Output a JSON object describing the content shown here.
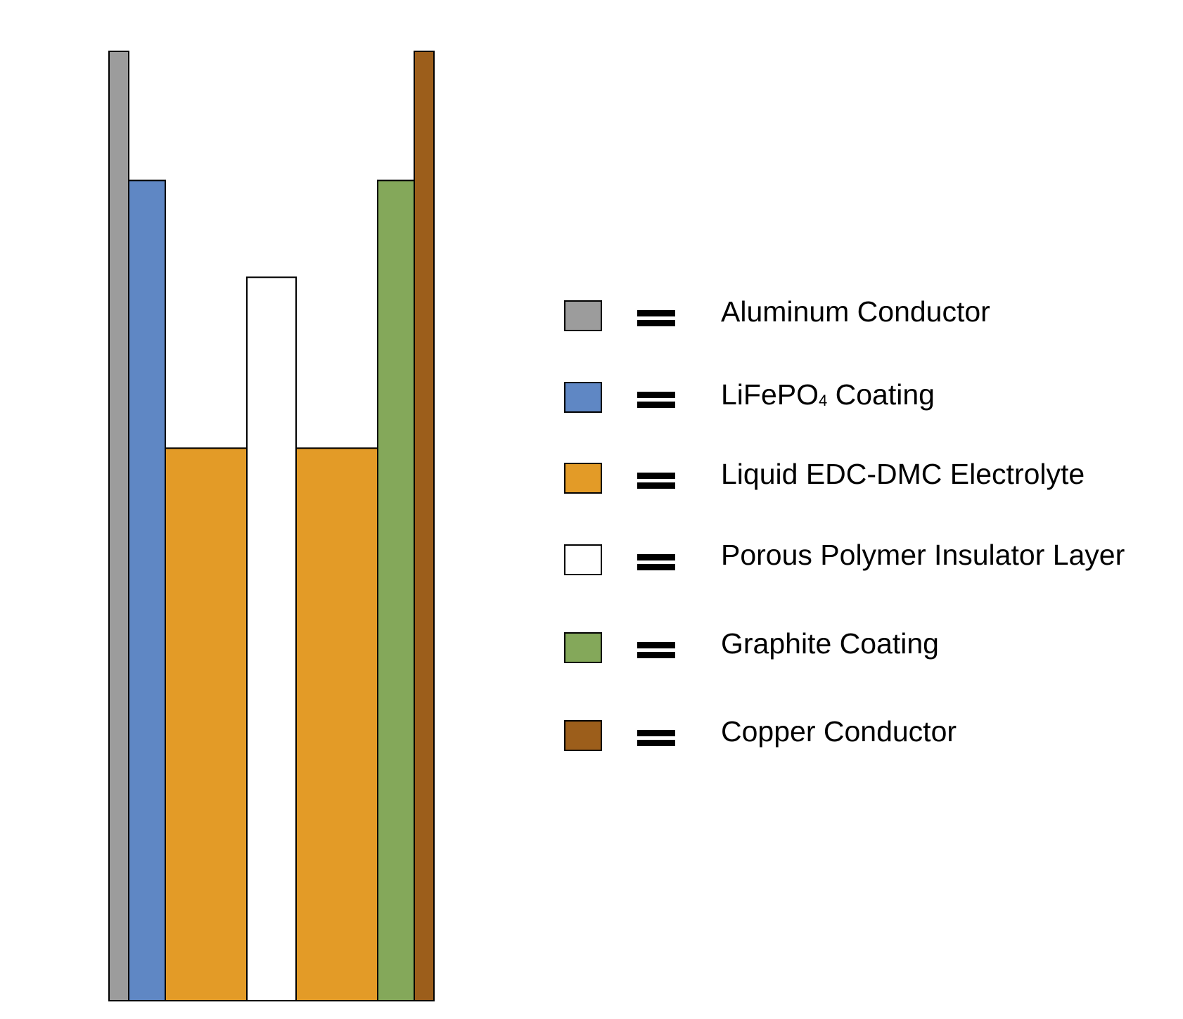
{
  "colors": {
    "aluminum": "#9c9c9c",
    "lifepo4": "#5f87c4",
    "electrolyte": "#e39b27",
    "insulator": "#ffffff",
    "graphite": "#84a85a",
    "copper": "#9c5e1b",
    "outline": "#000000"
  },
  "layers": [
    {
      "id": "aluminum",
      "relative_height": 1.0
    },
    {
      "id": "lifepo4",
      "relative_height": 0.864
    },
    {
      "id": "electrolyte",
      "relative_height": 0.582
    },
    {
      "id": "insulator",
      "relative_height": 0.762
    },
    {
      "id": "electrolyte",
      "relative_height": 0.582
    },
    {
      "id": "graphite",
      "relative_height": 0.864
    },
    {
      "id": "copper",
      "relative_height": 1.0
    }
  ],
  "legend": {
    "equals_symbol": "=",
    "items": [
      {
        "color": "aluminum",
        "label": "Aluminum Conductor"
      },
      {
        "color": "lifepo4",
        "label_main": "LiFePO",
        "label_sub": "4",
        "label_rest": " Coating"
      },
      {
        "color": "electrolyte",
        "label": "Liquid EDC-DMC Electrolyte"
      },
      {
        "color": "insulator",
        "label": "Porous Polymer Insulator Layer"
      },
      {
        "color": "graphite",
        "label": "Graphite Coating"
      },
      {
        "color": "copper",
        "label": "Copper Conductor"
      }
    ]
  }
}
